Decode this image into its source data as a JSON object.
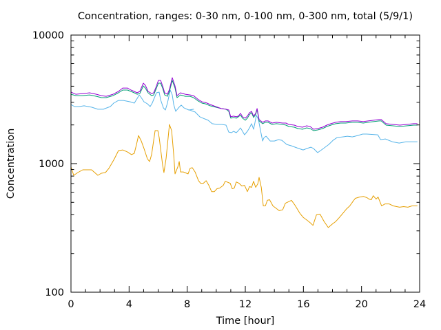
{
  "chart_data": {
    "type": "line",
    "title": "Concentration, ranges: 0-30 nm, 0-100 nm, 0-300 nm, total (5/9/1)",
    "xlabel": "Time [hour]",
    "ylabel": "Concentration",
    "xlim": [
      0,
      24
    ],
    "ylim": [
      100,
      10000
    ],
    "yscale": "log",
    "grid": false,
    "legend": "none",
    "xticks": [
      0,
      4,
      8,
      12,
      16,
      20,
      24
    ],
    "xtick_labels": [
      "0",
      "4",
      "8",
      "12",
      "16",
      "20",
      "24"
    ],
    "yticks": [
      100,
      1000,
      10000
    ],
    "ytick_labels": [
      "100",
      "1000",
      "10000"
    ],
    "series": [
      {
        "name": "0-30 nm",
        "color": "#e69f00",
        "x": [
          0.0,
          0.19,
          0.47,
          0.81,
          1.42,
          1.85,
          2.09,
          2.37,
          2.61,
          2.8,
          2.99,
          3.27,
          3.56,
          3.89,
          4.17,
          4.36,
          4.51,
          4.65,
          4.84,
          5.03,
          5.26,
          5.41,
          5.55,
          5.79,
          5.98,
          6.07,
          6.31,
          6.4,
          6.55,
          6.78,
          6.93,
          7.07,
          7.16,
          7.35,
          7.45,
          7.54,
          7.73,
          8.06,
          8.2,
          8.35,
          8.54,
          8.78,
          8.92,
          9.11,
          9.3,
          9.49,
          9.68,
          9.87,
          10.05,
          10.24,
          10.48,
          10.62,
          10.96,
          11.1,
          11.24,
          11.38,
          11.57,
          11.76,
          11.95,
          12.14,
          12.29,
          12.43,
          12.57,
          12.71,
          12.86,
          12.95,
          13.1,
          13.24,
          13.38,
          13.52,
          13.67,
          13.9,
          14.09,
          14.33,
          14.57,
          14.76,
          15.18,
          15.42,
          15.76,
          16.0,
          16.24,
          16.47,
          16.66,
          16.9,
          17.14,
          17.42,
          17.71,
          17.99,
          18.23,
          18.47,
          18.71,
          18.95,
          19.19,
          19.43,
          19.57,
          19.86,
          20.14,
          20.38,
          20.52,
          20.67,
          20.81,
          21.0,
          21.14,
          21.38,
          21.62,
          21.9,
          22.19,
          22.62,
          22.9,
          23.19,
          23.47,
          23.85
        ],
        "values": [
          941,
          811,
          852,
          895,
          895,
          811,
          842,
          852,
          918,
          1000,
          1090,
          1262,
          1278,
          1232,
          1175,
          1203,
          1410,
          1655,
          1500,
          1310,
          1090,
          1037,
          1175,
          1806,
          1806,
          1595,
          976,
          852,
          1104,
          2018,
          1806,
          1175,
          832,
          941,
          1037,
          862,
          862,
          832,
          918,
          930,
          862,
          737,
          703,
          703,
          737,
          678,
          606,
          606,
          638,
          646,
          678,
          729,
          703,
          638,
          646,
          720,
          703,
          670,
          678,
          606,
          663,
          654,
          729,
          654,
          695,
          782,
          654,
          469,
          469,
          518,
          524,
          469,
          452,
          431,
          437,
          492,
          518,
          475,
          410,
          381,
          364,
          347,
          331,
          400,
          405,
          355,
          318,
          339,
          355,
          381,
          410,
          442,
          469,
          512,
          537,
          550,
          556,
          543,
          530,
          524,
          563,
          530,
          550,
          469,
          486,
          486,
          469,
          458,
          463,
          458,
          469,
          469
        ]
      },
      {
        "name": "0-100 nm",
        "color": "#56b4e9",
        "x": [
          0.0,
          0.24,
          0.57,
          0.9,
          1.42,
          1.85,
          2.23,
          2.47,
          2.71,
          2.94,
          3.27,
          3.61,
          4.08,
          4.36,
          4.55,
          4.7,
          4.84,
          5.03,
          5.26,
          5.45,
          5.59,
          5.88,
          6.07,
          6.17,
          6.36,
          6.5,
          6.64,
          6.83,
          6.97,
          7.07,
          7.21,
          7.4,
          7.59,
          7.78,
          8.11,
          8.44,
          8.16,
          8.54,
          8.87,
          9.2,
          9.44,
          9.72,
          10.05,
          10.39,
          10.67,
          10.86,
          11.05,
          11.19,
          11.38,
          11.52,
          11.67,
          11.81,
          11.95,
          12.14,
          12.29,
          12.43,
          12.57,
          12.67,
          12.76,
          12.9,
          13.05,
          13.19,
          13.29,
          13.43,
          13.71,
          14.0,
          14.28,
          14.52,
          14.85,
          15.18,
          15.56,
          15.98,
          16.22,
          16.51,
          16.7,
          16.98,
          17.37,
          17.75,
          18.04,
          18.32,
          18.7,
          19.03,
          19.36,
          19.74,
          20.08,
          20.36,
          21.12,
          21.31,
          21.64,
          22.12,
          22.59,
          23.06,
          23.54,
          23.85
        ],
        "values": [
          2884,
          2780,
          2780,
          2815,
          2748,
          2647,
          2647,
          2714,
          2780,
          2955,
          3100,
          3100,
          3027,
          2955,
          3202,
          3423,
          3260,
          3027,
          2920,
          2780,
          2955,
          3553,
          3598,
          3140,
          2714,
          2614,
          2955,
          3734,
          3423,
          2884,
          2550,
          2714,
          2850,
          2714,
          2614,
          2647,
          2614,
          2520,
          2314,
          2230,
          2175,
          2044,
          2018,
          2018,
          1993,
          1760,
          1740,
          1784,
          1740,
          1806,
          1897,
          1784,
          1676,
          1784,
          1897,
          2044,
          1850,
          2095,
          2380,
          2210,
          1806,
          1500,
          1595,
          1635,
          1500,
          1500,
          1537,
          1518,
          1410,
          1376,
          1326,
          1278,
          1310,
          1342,
          1310,
          1218,
          1310,
          1410,
          1518,
          1595,
          1615,
          1635,
          1615,
          1655,
          1697,
          1697,
          1676,
          1537,
          1555,
          1480,
          1445,
          1480,
          1480,
          1480
        ]
      },
      {
        "name": "0-300 nm",
        "color": "#009e73",
        "x": [
          0.0,
          0.33,
          0.81,
          1.28,
          1.75,
          2.09,
          2.42,
          2.9,
          3.27,
          3.56,
          3.89,
          4.13,
          4.36,
          4.55,
          4.74,
          4.98,
          5.12,
          5.31,
          5.55,
          5.69,
          5.83,
          6.02,
          6.17,
          6.31,
          6.45,
          6.64,
          6.78,
          6.97,
          7.16,
          7.3,
          7.54,
          7.87,
          8.2,
          8.44,
          8.78,
          9.01,
          9.25,
          9.58,
          9.96,
          10.34,
          10.67,
          10.86,
          11.0,
          11.19,
          11.38,
          11.52,
          11.67,
          11.81,
          12.0,
          12.14,
          12.29,
          12.43,
          12.57,
          12.71,
          12.81,
          12.95,
          13.19,
          13.38,
          13.57,
          13.85,
          14.14,
          14.57,
          14.8,
          14.99,
          15.37,
          15.61,
          15.94,
          16.22,
          16.46,
          16.7,
          16.98,
          17.32,
          17.61,
          17.89,
          18.23,
          18.56,
          18.9,
          19.36,
          19.74,
          20.12,
          20.45,
          20.83,
          21.21,
          21.36,
          21.69,
          22.16,
          22.64,
          23.11,
          23.59,
          23.85
        ],
        "values": [
          3466,
          3381,
          3381,
          3423,
          3339,
          3260,
          3260,
          3381,
          3553,
          3734,
          3734,
          3642,
          3553,
          3466,
          3509,
          4020,
          3870,
          3553,
          3381,
          3423,
          3734,
          4226,
          4226,
          3870,
          3423,
          3339,
          3642,
          4440,
          3870,
          3260,
          3423,
          3339,
          3339,
          3260,
          3060,
          2955,
          2920,
          2815,
          2748,
          2680,
          2647,
          2550,
          2257,
          2285,
          2257,
          2314,
          2380,
          2257,
          2175,
          2257,
          2410,
          2490,
          2285,
          2410,
          2640,
          2150,
          2044,
          2095,
          2095,
          2018,
          2044,
          2018,
          1993,
          1944,
          1920,
          1874,
          1850,
          1897,
          1874,
          1806,
          1828,
          1874,
          1944,
          1993,
          2044,
          2069,
          2069,
          2095,
          2095,
          2069,
          2095,
          2122,
          2148,
          2148,
          1993,
          1969,
          1944,
          1969,
          1993,
          1993
        ]
      },
      {
        "name": "total",
        "color": "#9400d3",
        "x": [
          0.0,
          0.33,
          0.81,
          1.28,
          1.75,
          2.09,
          2.42,
          2.9,
          3.27,
          3.56,
          3.89,
          4.13,
          4.36,
          4.55,
          4.74,
          4.98,
          5.12,
          5.31,
          5.55,
          5.69,
          5.83,
          6.02,
          6.17,
          6.31,
          6.45,
          6.64,
          6.78,
          6.97,
          7.16,
          7.3,
          7.54,
          7.87,
          8.2,
          8.44,
          8.78,
          9.01,
          9.25,
          9.58,
          9.96,
          10.34,
          10.67,
          10.86,
          11.0,
          11.19,
          11.38,
          11.52,
          11.67,
          11.81,
          12.0,
          12.14,
          12.29,
          12.43,
          12.57,
          12.71,
          12.81,
          12.95,
          13.19,
          13.38,
          13.57,
          13.85,
          14.14,
          14.57,
          14.8,
          14.99,
          15.37,
          15.61,
          15.94,
          16.22,
          16.46,
          16.7,
          16.98,
          17.32,
          17.61,
          17.89,
          18.23,
          18.56,
          18.9,
          19.36,
          19.74,
          20.12,
          20.45,
          20.83,
          21.21,
          21.36,
          21.69,
          22.16,
          22.64,
          23.11,
          23.59,
          23.85
        ],
        "values": [
          3598,
          3466,
          3509,
          3553,
          3466,
          3381,
          3339,
          3466,
          3642,
          3870,
          3870,
          3734,
          3642,
          3553,
          3642,
          4226,
          4070,
          3642,
          3509,
          3553,
          3870,
          4440,
          4440,
          4020,
          3553,
          3466,
          3777,
          4660,
          4020,
          3381,
          3553,
          3466,
          3423,
          3381,
          3140,
          3027,
          2990,
          2884,
          2780,
          2680,
          2647,
          2614,
          2314,
          2343,
          2314,
          2343,
          2460,
          2314,
          2257,
          2343,
          2490,
          2550,
          2343,
          2460,
          2680,
          2202,
          2095,
          2148,
          2148,
          2069,
          2095,
          2069,
          2069,
          2018,
          1993,
          1944,
          1920,
          1969,
          1944,
          1850,
          1874,
          1920,
          1993,
          2044,
          2095,
          2122,
          2122,
          2148,
          2148,
          2122,
          2148,
          2175,
          2202,
          2202,
          2044,
          2018,
          1993,
          2018,
          2044,
          2044
        ]
      }
    ]
  }
}
